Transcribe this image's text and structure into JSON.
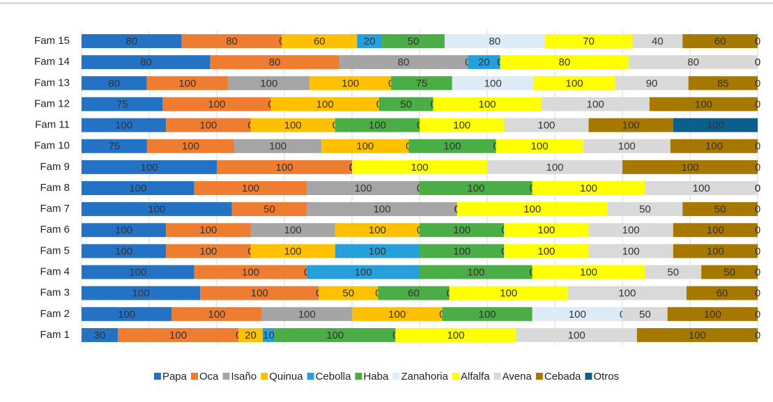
{
  "chart_data": {
    "type": "bar",
    "orientation": "horizontal",
    "stacking": "percent",
    "grid": true,
    "xlim": [
      0,
      100
    ],
    "xticks": [
      0,
      10,
      20,
      30,
      40,
      50,
      60,
      70,
      80,
      90,
      100
    ],
    "categories": [
      "Fam 1",
      "Fam 2",
      "Fam 3",
      "Fam 4",
      "Fam 5",
      "Fam 6",
      "Fam 7",
      "Fam 8",
      "Fam 9",
      "Fam 10",
      "Fam 11",
      "Fam 12",
      "Fam 13",
      "Fam 14",
      "Fam 15"
    ],
    "series": [
      {
        "name": "Papa",
        "color": "#2472c4",
        "values": [
          30,
          100,
          100,
          100,
          100,
          100,
          100,
          100,
          100,
          75,
          100,
          75,
          80,
          80,
          80
        ]
      },
      {
        "name": "Oca",
        "color": "#ef7d31",
        "values": [
          100,
          100,
          100,
          100,
          100,
          100,
          50,
          100,
          100,
          100,
          100,
          100,
          100,
          80,
          80
        ]
      },
      {
        "name": "Isaño",
        "color": "#a5a5a5",
        "values": [
          0,
          100,
          0,
          0,
          0,
          100,
          100,
          100,
          0,
          100,
          0,
          0,
          100,
          80,
          0
        ]
      },
      {
        "name": "Quinua",
        "color": "#ffc000",
        "values": [
          20,
          100,
          50,
          0,
          100,
          100,
          0,
          0,
          0,
          100,
          100,
          100,
          100,
          0,
          60
        ]
      },
      {
        "name": "Cebolla",
        "color": "#26a0da",
        "values": [
          10,
          0,
          0,
          100,
          100,
          0,
          0,
          0,
          0,
          0,
          0,
          0,
          0,
          20,
          20
        ]
      },
      {
        "name": "Haba",
        "color": "#4aad45",
        "values": [
          100,
          100,
          60,
          100,
          100,
          100,
          0,
          100,
          0,
          100,
          100,
          50,
          75,
          0,
          50
        ]
      },
      {
        "name": "Zanahoria",
        "color": "#ddebf7",
        "values": [
          0,
          100,
          0,
          0,
          0,
          0,
          0,
          0,
          0,
          0,
          0,
          0,
          100,
          0,
          80
        ]
      },
      {
        "name": "Alfalfa",
        "color": "#ffff00",
        "values": [
          100,
          0,
          100,
          100,
          100,
          100,
          100,
          100,
          100,
          100,
          100,
          100,
          100,
          80,
          70
        ]
      },
      {
        "name": "Avena",
        "color": "#d9d9d9",
        "values": [
          100,
          50,
          100,
          50,
          100,
          100,
          50,
          100,
          100,
          100,
          100,
          100,
          90,
          80,
          40
        ]
      },
      {
        "name": "Cebada",
        "color": "#a67800",
        "values": [
          100,
          100,
          60,
          50,
          100,
          100,
          50,
          0,
          100,
          100,
          100,
          100,
          85,
          0,
          60
        ]
      },
      {
        "name": "Otros",
        "color": "#0b5f8c",
        "values": [
          0,
          0,
          0,
          0,
          0,
          0,
          0,
          0,
          0,
          0,
          100,
          0,
          0,
          0,
          0
        ]
      }
    ]
  }
}
